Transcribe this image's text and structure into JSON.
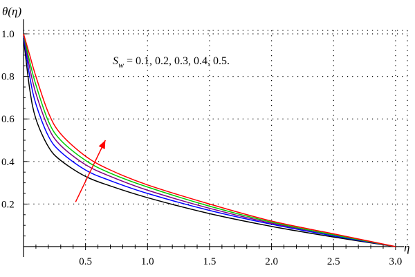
{
  "chart_data": {
    "type": "line",
    "ylabel": "θ(η)",
    "xlabel": "η",
    "annotation": "S_w = 0.1, 0.2, 0.3, 0.4, 0.5.",
    "annotation_parts": {
      "S": "S",
      "sub": "w",
      "rest": " = 0.1, 0.2, 0.3, 0.4, 0.5."
    },
    "xlim": [
      0,
      3.1
    ],
    "ylim": [
      -0.05,
      1.05
    ],
    "x_ticks": [
      "0.5",
      "1.0",
      "1.5",
      "2.0",
      "2.5",
      "3.0"
    ],
    "y_ticks": [
      "0.2",
      "0.4",
      "0.6",
      "0.8",
      "1.0"
    ],
    "grid": true,
    "arrow_color": "#ff0000",
    "series": [
      {
        "color": "#000000",
        "x": [
          0,
          0.05,
          0.1,
          0.2,
          0.3,
          0.5,
          0.7,
          1.0,
          1.5,
          2.0,
          2.5,
          3.0
        ],
        "y": [
          0.98,
          0.74,
          0.6,
          0.47,
          0.405,
          0.33,
          0.285,
          0.23,
          0.155,
          0.095,
          0.045,
          0.0
        ]
      },
      {
        "color": "#0000ff",
        "x": [
          0,
          0.05,
          0.1,
          0.2,
          0.3,
          0.5,
          0.7,
          1.0,
          1.5,
          2.0,
          2.5,
          3.0
        ],
        "y": [
          0.99,
          0.8,
          0.67,
          0.52,
          0.445,
          0.36,
          0.31,
          0.25,
          0.17,
          0.105,
          0.05,
          0.0
        ]
      },
      {
        "color": "#800080",
        "x": [
          0,
          0.05,
          0.1,
          0.2,
          0.3,
          0.5,
          0.7,
          1.0,
          1.5,
          2.0,
          2.5,
          3.0
        ],
        "y": [
          1.0,
          0.84,
          0.72,
          0.56,
          0.475,
          0.385,
          0.33,
          0.265,
          0.18,
          0.11,
          0.055,
          0.0
        ]
      },
      {
        "color": "#00cc00",
        "x": [
          0,
          0.05,
          0.1,
          0.2,
          0.3,
          0.5,
          0.7,
          1.0,
          1.5,
          2.0,
          2.5,
          3.0
        ],
        "y": [
          1.0,
          0.87,
          0.76,
          0.59,
          0.5,
          0.405,
          0.345,
          0.28,
          0.19,
          0.115,
          0.055,
          0.0
        ]
      },
      {
        "color": "#ff0000",
        "x": [
          0,
          0.05,
          0.1,
          0.2,
          0.3,
          0.5,
          0.7,
          1.0,
          1.5,
          2.0,
          2.5,
          3.0
        ],
        "y": [
          1.0,
          0.9,
          0.8,
          0.63,
          0.53,
          0.425,
          0.36,
          0.29,
          0.2,
          0.12,
          0.06,
          0.0
        ]
      }
    ],
    "arrow": {
      "from": [
        0.42,
        0.21
      ],
      "to": [
        0.66,
        0.5
      ]
    }
  }
}
